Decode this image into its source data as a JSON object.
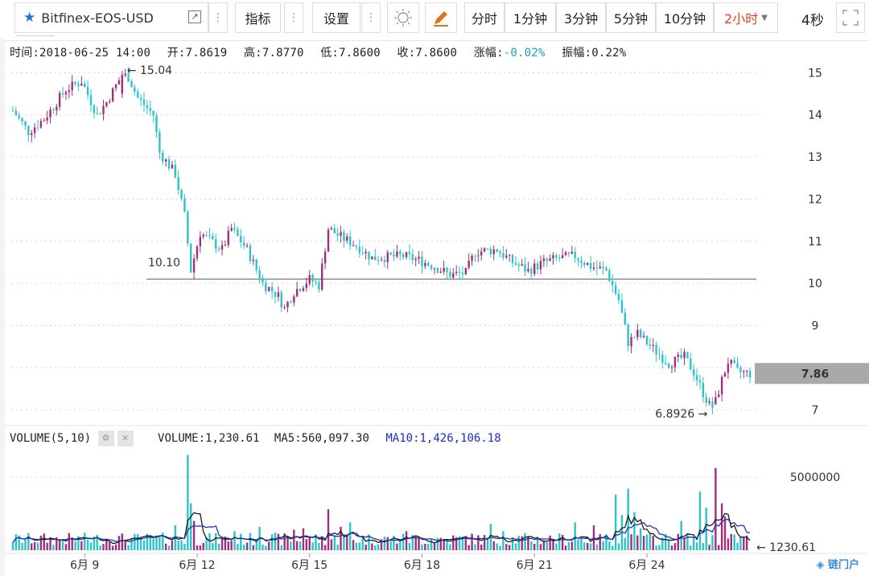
{
  "toolbar": {
    "symbol": "Bitfinex-EOS-USD",
    "indicators_label": "指标",
    "settings_label": "设置",
    "periods": [
      "分时",
      "1分钟",
      "3分钟",
      "5分钟",
      "10分钟",
      "2小时"
    ],
    "active_period": "2小时",
    "refresh": "4秒"
  },
  "info": {
    "time": "时间:2018-06-25 14:00",
    "open": "开:7.8619",
    "high": "高:7.8770",
    "low": "低:7.8600",
    "close": "收:7.8600",
    "change_label": "涨幅:",
    "change_value": "-0.02%",
    "amplitude": "振幅:0.22%"
  },
  "volume_info": {
    "name": "VOLUME(5,10)",
    "volume": "VOLUME:1,230.61",
    "ma5": "MA5:560,097.30",
    "ma10": "MA10:1,426,106.18"
  },
  "colors": {
    "up": "#a0307a",
    "down": "#2ec3c9",
    "ma5": "#1a1a1a",
    "ma10": "#2233aa",
    "ma10_text": "#1d2fc1",
    "last_price_bg": "#a9a9a9"
  },
  "chart_data": {
    "type": "candlestick",
    "ylim": [
      6.7,
      15.35
    ],
    "yticks": [
      "15",
      "14",
      "13",
      "12",
      "11",
      "10",
      "9",
      "8",
      "7"
    ],
    "xticks": [
      {
        "label": "6月 9",
        "index": 23
      },
      {
        "label": "6月 12",
        "index": 59
      },
      {
        "label": "6月 15",
        "index": 95
      },
      {
        "label": "6月 18",
        "index": 131
      },
      {
        "label": "6月 21",
        "index": 167
      },
      {
        "label": "6月 24",
        "index": 203
      }
    ],
    "max_label": "← 15.04",
    "min_label": "6.8926 →",
    "hline": {
      "value": 10.1,
      "label": "10.10"
    },
    "last_price": "7.86",
    "volume_max_tick": "5000000",
    "last_volume": "← 1230.61",
    "candles": [],
    "volume": []
  }
}
